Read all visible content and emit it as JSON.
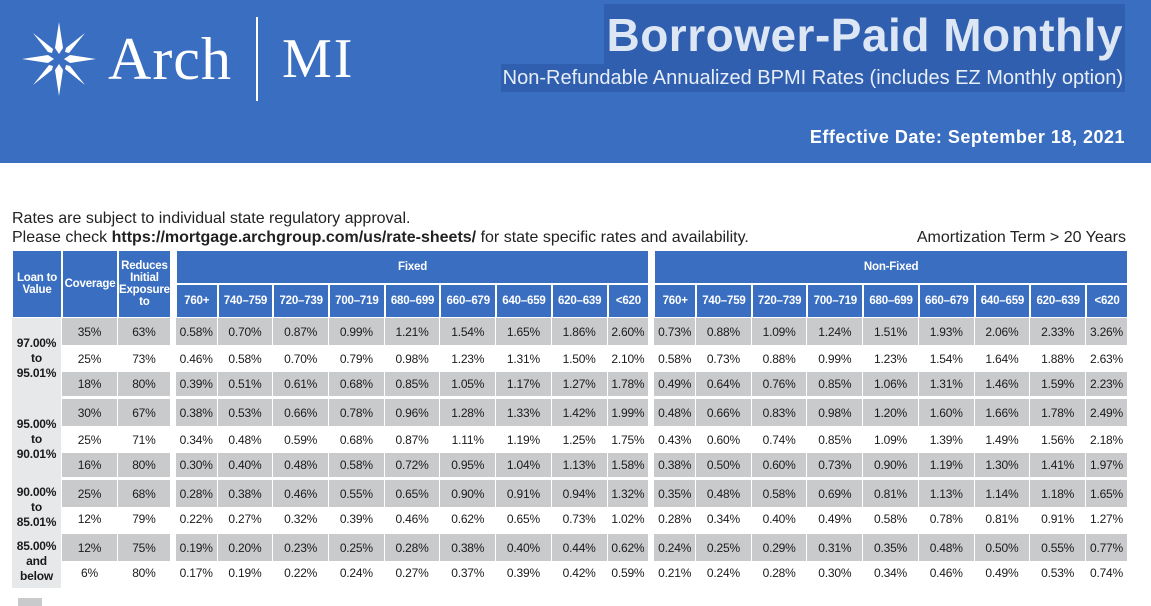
{
  "brand": {
    "name": "Arch",
    "suffix": "MI"
  },
  "header": {
    "title": "Borrower-Paid Monthly",
    "subtitle": "Non-Refundable Annualized BPMI Rates (includes EZ Monthly option)",
    "effective_date": "Effective Date: September 18, 2021"
  },
  "notes": {
    "line1": "Rates are subject to individual state regulatory approval.",
    "line2_pre": "Please check ",
    "line2_link": "https://mortgage.archgroup.com/us/rate-sheets/",
    "line2_post": " for state specific rates and availability.",
    "amortization": "Amortization Term > 20 Years"
  },
  "table": {
    "headers": {
      "ltv": "Loan to Value",
      "coverage": "Coverage",
      "reduces": "Reduces Initial Exposure to",
      "fixed": "Fixed",
      "nonfixed": "Non-Fixed",
      "score_bands": [
        "760+",
        "740–759",
        "720–739",
        "700–719",
        "680–699",
        "660–679",
        "640–659",
        "620–639",
        "<620"
      ]
    },
    "groups": [
      {
        "ltv": [
          "97.00%",
          "to",
          "95.01%"
        ],
        "rows": [
          {
            "coverage": "35%",
            "reduces": "63%",
            "fixed": [
              "0.58%",
              "0.70%",
              "0.87%",
              "0.99%",
              "1.21%",
              "1.54%",
              "1.65%",
              "1.86%",
              "2.60%"
            ],
            "nonfixed": [
              "0.73%",
              "0.88%",
              "1.09%",
              "1.24%",
              "1.51%",
              "1.93%",
              "2.06%",
              "2.33%",
              "3.26%"
            ]
          },
          {
            "coverage": "25%",
            "reduces": "73%",
            "fixed": [
              "0.46%",
              "0.58%",
              "0.70%",
              "0.79%",
              "0.98%",
              "1.23%",
              "1.31%",
              "1.50%",
              "2.10%"
            ],
            "nonfixed": [
              "0.58%",
              "0.73%",
              "0.88%",
              "0.99%",
              "1.23%",
              "1.54%",
              "1.64%",
              "1.88%",
              "2.63%"
            ]
          },
          {
            "coverage": "18%",
            "reduces": "80%",
            "fixed": [
              "0.39%",
              "0.51%",
              "0.61%",
              "0.68%",
              "0.85%",
              "1.05%",
              "1.17%",
              "1.27%",
              "1.78%"
            ],
            "nonfixed": [
              "0.49%",
              "0.64%",
              "0.76%",
              "0.85%",
              "1.06%",
              "1.31%",
              "1.46%",
              "1.59%",
              "2.23%"
            ]
          }
        ]
      },
      {
        "ltv": [
          "95.00%",
          "to",
          "90.01%"
        ],
        "rows": [
          {
            "coverage": "30%",
            "reduces": "67%",
            "fixed": [
              "0.38%",
              "0.53%",
              "0.66%",
              "0.78%",
              "0.96%",
              "1.28%",
              "1.33%",
              "1.42%",
              "1.99%"
            ],
            "nonfixed": [
              "0.48%",
              "0.66%",
              "0.83%",
              "0.98%",
              "1.20%",
              "1.60%",
              "1.66%",
              "1.78%",
              "2.49%"
            ]
          },
          {
            "coverage": "25%",
            "reduces": "71%",
            "fixed": [
              "0.34%",
              "0.48%",
              "0.59%",
              "0.68%",
              "0.87%",
              "1.11%",
              "1.19%",
              "1.25%",
              "1.75%"
            ],
            "nonfixed": [
              "0.43%",
              "0.60%",
              "0.74%",
              "0.85%",
              "1.09%",
              "1.39%",
              "1.49%",
              "1.56%",
              "2.18%"
            ]
          },
          {
            "coverage": "16%",
            "reduces": "80%",
            "fixed": [
              "0.30%",
              "0.40%",
              "0.48%",
              "0.58%",
              "0.72%",
              "0.95%",
              "1.04%",
              "1.13%",
              "1.58%"
            ],
            "nonfixed": [
              "0.38%",
              "0.50%",
              "0.60%",
              "0.73%",
              "0.90%",
              "1.19%",
              "1.30%",
              "1.41%",
              "1.97%"
            ]
          }
        ]
      },
      {
        "ltv": [
          "90.00%",
          "to",
          "85.01%"
        ],
        "rows": [
          {
            "coverage": "25%",
            "reduces": "68%",
            "fixed": [
              "0.28%",
              "0.38%",
              "0.46%",
              "0.55%",
              "0.65%",
              "0.90%",
              "0.91%",
              "0.94%",
              "1.32%"
            ],
            "nonfixed": [
              "0.35%",
              "0.48%",
              "0.58%",
              "0.69%",
              "0.81%",
              "1.13%",
              "1.14%",
              "1.18%",
              "1.65%"
            ]
          },
          {
            "coverage": "12%",
            "reduces": "79%",
            "fixed": [
              "0.22%",
              "0.27%",
              "0.32%",
              "0.39%",
              "0.46%",
              "0.62%",
              "0.65%",
              "0.73%",
              "1.02%"
            ],
            "nonfixed": [
              "0.28%",
              "0.34%",
              "0.40%",
              "0.49%",
              "0.58%",
              "0.78%",
              "0.81%",
              "0.91%",
              "1.27%"
            ]
          }
        ]
      },
      {
        "ltv": [
          "85.00%",
          "and",
          "below"
        ],
        "rows": [
          {
            "coverage": "12%",
            "reduces": "75%",
            "fixed": [
              "0.19%",
              "0.20%",
              "0.23%",
              "0.25%",
              "0.28%",
              "0.38%",
              "0.40%",
              "0.44%",
              "0.62%"
            ],
            "nonfixed": [
              "0.24%",
              "0.25%",
              "0.29%",
              "0.31%",
              "0.35%",
              "0.48%",
              "0.50%",
              "0.55%",
              "0.77%"
            ]
          },
          {
            "coverage": "6%",
            "reduces": "80%",
            "fixed": [
              "0.17%",
              "0.19%",
              "0.22%",
              "0.24%",
              "0.27%",
              "0.37%",
              "0.39%",
              "0.42%",
              "0.59%"
            ],
            "nonfixed": [
              "0.21%",
              "0.24%",
              "0.28%",
              "0.30%",
              "0.34%",
              "0.46%",
              "0.49%",
              "0.53%",
              "0.74%"
            ]
          }
        ]
      }
    ]
  },
  "colors": {
    "banner": "#3a6ec0",
    "shade": "#c9cacc",
    "ltv_bg": "#e7e8ea"
  }
}
